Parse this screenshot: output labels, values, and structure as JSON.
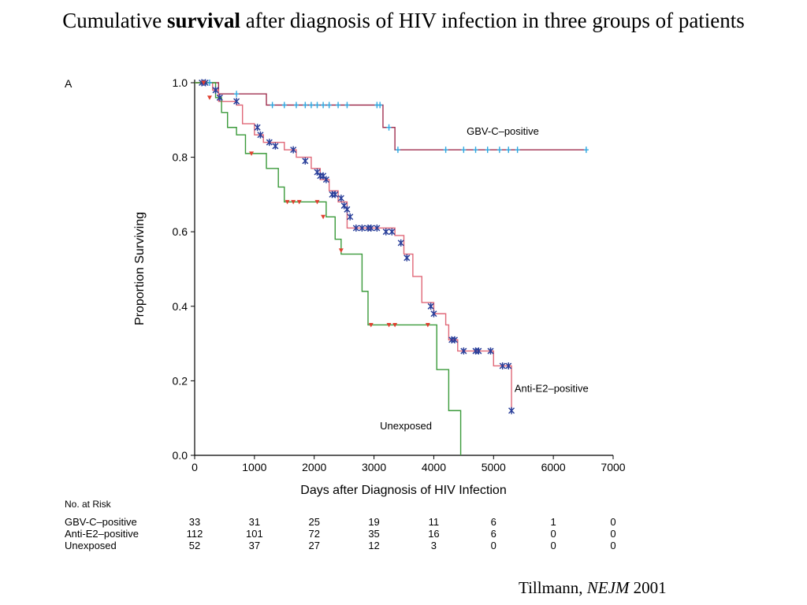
{
  "slide": {
    "title_before": "Cumulative ",
    "title_bold": "survival",
    "title_after": " after diagnosis of HIV infection in three groups of patients",
    "citation_author": "Tillmann, ",
    "citation_journal": "NEJM",
    "citation_year": " 2001"
  },
  "chart_data": {
    "type": "line",
    "panel_label": "A",
    "xlabel": "Days after Diagnosis of HIV Infection",
    "ylabel": "Proportion Surviving",
    "xlim": [
      0,
      7000
    ],
    "ylim": [
      0,
      1.0
    ],
    "x_ticks": [
      "0",
      "1000",
      "2000",
      "3000",
      "4000",
      "5000",
      "6000",
      "7000"
    ],
    "y_ticks": [
      "0.0",
      "0.2",
      "0.4",
      "0.6",
      "0.8",
      "1.0"
    ],
    "grid": false,
    "series": [
      {
        "name": "GBV-C–positive",
        "color": "#a03050",
        "censor_color": "#2fa8e0",
        "marker": "tick",
        "steps": [
          [
            0,
            1.0
          ],
          [
            400,
            0.97
          ],
          [
            1200,
            0.94
          ],
          [
            3150,
            0.88
          ],
          [
            3350,
            0.82
          ],
          [
            6550,
            0.82
          ]
        ],
        "censored": [
          [
            250,
            1.0
          ],
          [
            700,
            0.97
          ],
          [
            1300,
            0.94
          ],
          [
            1500,
            0.94
          ],
          [
            1700,
            0.94
          ],
          [
            1850,
            0.94
          ],
          [
            1950,
            0.94
          ],
          [
            2050,
            0.94
          ],
          [
            2150,
            0.94
          ],
          [
            2250,
            0.94
          ],
          [
            2400,
            0.94
          ],
          [
            2550,
            0.94
          ],
          [
            3050,
            0.94
          ],
          [
            3100,
            0.94
          ],
          [
            3250,
            0.88
          ],
          [
            3400,
            0.82
          ],
          [
            4200,
            0.82
          ],
          [
            4500,
            0.82
          ],
          [
            4700,
            0.82
          ],
          [
            4900,
            0.82
          ],
          [
            5100,
            0.82
          ],
          [
            5250,
            0.82
          ],
          [
            5400,
            0.82
          ],
          [
            6550,
            0.82
          ]
        ]
      },
      {
        "name": "Anti-E2–positive",
        "color": "#e06878",
        "censor_color": "#2a3f9a",
        "marker": "star",
        "steps": [
          [
            0,
            1.0
          ],
          [
            300,
            0.98
          ],
          [
            400,
            0.95
          ],
          [
            700,
            0.94
          ],
          [
            800,
            0.89
          ],
          [
            1000,
            0.86
          ],
          [
            1150,
            0.84
          ],
          [
            1500,
            0.82
          ],
          [
            1700,
            0.8
          ],
          [
            1950,
            0.77
          ],
          [
            2100,
            0.74
          ],
          [
            2250,
            0.71
          ],
          [
            2400,
            0.68
          ],
          [
            2550,
            0.61
          ],
          [
            3100,
            0.61
          ],
          [
            3350,
            0.59
          ],
          [
            3500,
            0.54
          ],
          [
            3650,
            0.48
          ],
          [
            3800,
            0.41
          ],
          [
            4000,
            0.38
          ],
          [
            4200,
            0.35
          ],
          [
            4250,
            0.31
          ],
          [
            4400,
            0.28
          ],
          [
            5000,
            0.24
          ],
          [
            5300,
            0.12
          ]
        ],
        "censored": [
          [
            120,
            1.0
          ],
          [
            180,
            1.0
          ],
          [
            350,
            0.98
          ],
          [
            420,
            0.96
          ],
          [
            700,
            0.95
          ],
          [
            1050,
            0.88
          ],
          [
            1100,
            0.86
          ],
          [
            1250,
            0.84
          ],
          [
            1350,
            0.83
          ],
          [
            1650,
            0.82
          ],
          [
            1850,
            0.79
          ],
          [
            2050,
            0.76
          ],
          [
            2100,
            0.75
          ],
          [
            2150,
            0.75
          ],
          [
            2200,
            0.74
          ],
          [
            2300,
            0.7
          ],
          [
            2350,
            0.7
          ],
          [
            2450,
            0.69
          ],
          [
            2500,
            0.67
          ],
          [
            2550,
            0.66
          ],
          [
            2600,
            0.64
          ],
          [
            2700,
            0.61
          ],
          [
            2800,
            0.61
          ],
          [
            2900,
            0.61
          ],
          [
            2950,
            0.61
          ],
          [
            3050,
            0.61
          ],
          [
            3200,
            0.6
          ],
          [
            3300,
            0.6
          ],
          [
            3450,
            0.57
          ],
          [
            3550,
            0.53
          ],
          [
            3950,
            0.4
          ],
          [
            4000,
            0.38
          ],
          [
            4300,
            0.31
          ],
          [
            4350,
            0.31
          ],
          [
            4500,
            0.28
          ],
          [
            4700,
            0.28
          ],
          [
            4750,
            0.28
          ],
          [
            4950,
            0.28
          ],
          [
            5150,
            0.24
          ],
          [
            5250,
            0.24
          ],
          [
            5300,
            0.12
          ]
        ]
      },
      {
        "name": "Unexposed",
        "color": "#3a9a3a",
        "censor_color": "#e04030",
        "marker": "triangle",
        "steps": [
          [
            0,
            1.0
          ],
          [
            350,
            0.96
          ],
          [
            450,
            0.92
          ],
          [
            550,
            0.88
          ],
          [
            700,
            0.86
          ],
          [
            850,
            0.81
          ],
          [
            1200,
            0.77
          ],
          [
            1400,
            0.72
          ],
          [
            1500,
            0.68
          ],
          [
            2200,
            0.64
          ],
          [
            2350,
            0.58
          ],
          [
            2450,
            0.54
          ],
          [
            2800,
            0.44
          ],
          [
            2900,
            0.35
          ],
          [
            4050,
            0.23
          ],
          [
            4250,
            0.12
          ],
          [
            4450,
            0.0
          ]
        ],
        "censored": [
          [
            150,
            1.0
          ],
          [
            250,
            0.96
          ],
          [
            950,
            0.81
          ],
          [
            1550,
            0.68
          ],
          [
            1650,
            0.68
          ],
          [
            1750,
            0.68
          ],
          [
            2050,
            0.68
          ],
          [
            2150,
            0.64
          ],
          [
            2450,
            0.55
          ],
          [
            2950,
            0.35
          ],
          [
            3250,
            0.35
          ],
          [
            3350,
            0.35
          ],
          [
            3900,
            0.35
          ]
        ]
      }
    ],
    "series_labels": [
      {
        "text": "GBV-C–positive",
        "x": 4550,
        "y": 0.86
      },
      {
        "text": "Anti-E2–positive",
        "x": 5350,
        "y": 0.17
      },
      {
        "text": "Unexposed",
        "x": 3100,
        "y": 0.07
      }
    ],
    "risk_table": {
      "header": "No. at Risk",
      "columns": [
        "0",
        "1000",
        "2000",
        "3000",
        "4000",
        "5000",
        "6000",
        "7000"
      ],
      "rows": [
        {
          "label": "GBV-C–positive",
          "values": [
            "33",
            "31",
            "25",
            "19",
            "11",
            "6",
            "1",
            "0"
          ]
        },
        {
          "label": "Anti-E2–positive",
          "values": [
            "112",
            "101",
            "72",
            "35",
            "16",
            "6",
            "0",
            "0"
          ]
        },
        {
          "label": "Unexposed",
          "values": [
            "52",
            "37",
            "27",
            "12",
            "3",
            "0",
            "0",
            "0"
          ]
        }
      ]
    }
  }
}
